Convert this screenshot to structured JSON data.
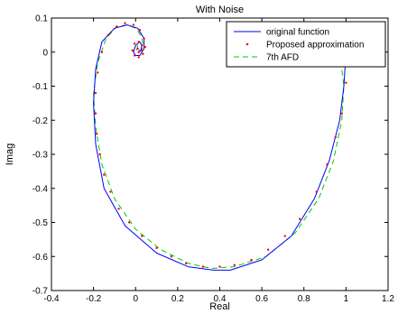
{
  "chart_data": {
    "type": "line",
    "title": "With Noise",
    "xlabel": "Real",
    "ylabel": "Imag",
    "xlim": [
      -0.4,
      1.2
    ],
    "ylim": [
      -0.7,
      0.1
    ],
    "xticks": [
      -0.4,
      -0.2,
      0,
      0.2,
      0.4,
      0.6,
      0.8,
      1,
      1.2
    ],
    "xtick_labels": [
      "-0.4",
      "-0.2",
      "0",
      "0.2",
      "0.4",
      "0.6",
      "0.8",
      "1",
      "1.2"
    ],
    "yticks": [
      -0.7,
      -0.6,
      -0.5,
      -0.4,
      -0.3,
      -0.2,
      -0.1,
      0,
      0.1
    ],
    "ytick_labels": [
      "-0.7",
      "-0.6",
      "-0.5",
      "-0.4",
      "-0.3",
      "-0.2",
      "-0.1",
      "0",
      "0.1"
    ],
    "grid": false,
    "legend_position": "top-right",
    "series": [
      {
        "name": "original function",
        "color": "#0000ff",
        "style": "solid",
        "points": [
          [
            1.0,
            0.0
          ],
          [
            0.99,
            -0.1
          ],
          [
            0.97,
            -0.2
          ],
          [
            0.92,
            -0.32
          ],
          [
            0.85,
            -0.43
          ],
          [
            0.74,
            -0.54
          ],
          [
            0.6,
            -0.61
          ],
          [
            0.45,
            -0.64
          ],
          [
            0.37,
            -0.64
          ],
          [
            0.25,
            -0.63
          ],
          [
            0.1,
            -0.59
          ],
          [
            -0.05,
            -0.51
          ],
          [
            -0.15,
            -0.4
          ],
          [
            -0.19,
            -0.27
          ],
          [
            -0.2,
            -0.15
          ],
          [
            -0.19,
            -0.05
          ],
          [
            -0.16,
            0.03
          ],
          [
            -0.1,
            0.07
          ],
          [
            -0.04,
            0.08
          ],
          [
            0.01,
            0.07
          ],
          [
            0.04,
            0.04
          ],
          [
            0.04,
            0.01
          ],
          [
            0.02,
            -0.01
          ],
          [
            0.0,
            -0.01
          ],
          [
            -0.01,
            0.0
          ],
          [
            0.0,
            0.02
          ],
          [
            0.02,
            0.03
          ],
          [
            0.03,
            0.02
          ],
          [
            0.025,
            0.005
          ],
          [
            0.015,
            0.005
          ]
        ]
      },
      {
        "name": "Proposed approximation",
        "color": "#ff0000",
        "style": "dotted-markers",
        "points": [
          [
            1.0,
            -0.09
          ],
          [
            0.98,
            -0.18
          ],
          [
            0.95,
            -0.25
          ],
          [
            0.91,
            -0.33
          ],
          [
            0.86,
            -0.41
          ],
          [
            0.78,
            -0.49
          ],
          [
            0.71,
            -0.54
          ],
          [
            0.63,
            -0.58
          ],
          [
            0.55,
            -0.61
          ],
          [
            0.47,
            -0.625
          ],
          [
            0.4,
            -0.63
          ],
          [
            0.32,
            -0.63
          ],
          [
            0.24,
            -0.62
          ],
          [
            0.17,
            -0.6
          ],
          [
            0.1,
            -0.575
          ],
          [
            0.03,
            -0.54
          ],
          [
            -0.03,
            -0.5
          ],
          [
            -0.08,
            -0.46
          ],
          [
            -0.12,
            -0.41
          ],
          [
            -0.15,
            -0.36
          ],
          [
            -0.17,
            -0.3
          ],
          [
            -0.185,
            -0.24
          ],
          [
            -0.19,
            -0.18
          ],
          [
            -0.19,
            -0.12
          ],
          [
            -0.18,
            -0.06
          ],
          [
            -0.16,
            0.0
          ],
          [
            -0.13,
            0.05
          ],
          [
            -0.09,
            0.075
          ],
          [
            -0.05,
            0.085
          ],
          [
            -0.01,
            0.08
          ],
          [
            0.02,
            0.065
          ],
          [
            0.04,
            0.04
          ],
          [
            0.045,
            0.015
          ],
          [
            0.035,
            -0.005
          ],
          [
            0.015,
            -0.015
          ],
          [
            -0.005,
            -0.01
          ],
          [
            -0.015,
            0.005
          ],
          [
            -0.005,
            0.025
          ],
          [
            0.015,
            0.03
          ],
          [
            0.03,
            0.02
          ],
          [
            0.03,
            0.005
          ],
          [
            0.015,
            0.0
          ],
          [
            0.01,
            0.01
          ]
        ]
      },
      {
        "name": "7th AFD",
        "color": "#00cc00",
        "style": "dashed",
        "points": [
          [
            0.97,
            0.0
          ],
          [
            0.99,
            -0.1
          ],
          [
            0.98,
            -0.2
          ],
          [
            0.94,
            -0.32
          ],
          [
            0.87,
            -0.43
          ],
          [
            0.76,
            -0.53
          ],
          [
            0.62,
            -0.6
          ],
          [
            0.47,
            -0.63
          ],
          [
            0.36,
            -0.635
          ],
          [
            0.25,
            -0.62
          ],
          [
            0.12,
            -0.58
          ],
          [
            0.0,
            -0.52
          ],
          [
            -0.1,
            -0.43
          ],
          [
            -0.16,
            -0.33
          ],
          [
            -0.19,
            -0.22
          ],
          [
            -0.2,
            -0.12
          ],
          [
            -0.18,
            -0.03
          ],
          [
            -0.14,
            0.04
          ],
          [
            -0.09,
            0.075
          ],
          [
            -0.04,
            0.08
          ],
          [
            0.0,
            0.07
          ],
          [
            0.03,
            0.045
          ],
          [
            0.035,
            0.015
          ],
          [
            0.02,
            0.0
          ],
          [
            0.005,
            0.005
          ],
          [
            0.01,
            0.02
          ],
          [
            0.02,
            0.015
          ]
        ]
      }
    ]
  }
}
